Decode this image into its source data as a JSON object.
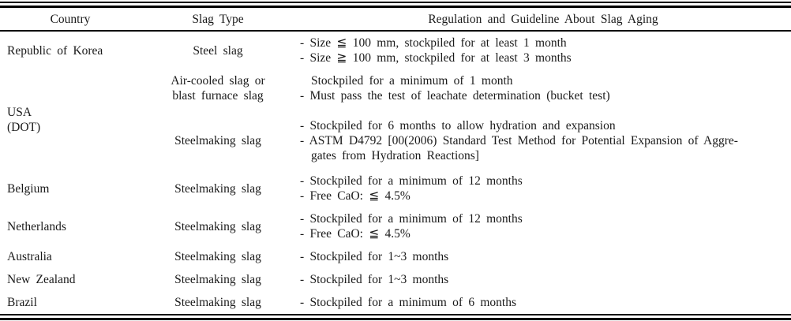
{
  "table": {
    "columns": [
      "Country",
      "Slag Type",
      "Regulation and Guideline About Slag Aging"
    ],
    "rows": [
      {
        "country_lines": [
          "Republic of Korea"
        ],
        "groups": [
          {
            "slag_type_lines": [
              "Steel slag"
            ],
            "regulation_lines": [
              "- Size ≦ 100 mm, stockpiled for at least 1 month",
              "- Size ≧ 100 mm, stockpiled for at least 3 months"
            ]
          }
        ]
      },
      {
        "country_lines": [
          "USA",
          "(DOT)"
        ],
        "groups": [
          {
            "slag_type_lines": [
              "Air-cooled slag or",
              "blast furnace slag"
            ],
            "regulation_lines": [
              "Stockpiled for a minimum of 1 month",
              "- Must pass the test of leachate determination (bucket test)"
            ]
          },
          {
            "slag_type_lines": [
              "Steelmaking slag"
            ],
            "regulation_lines": [
              "- Stockpiled for 6 months to allow hydration and expansion",
              "- ASTM D4792 [00(2006) Standard Test Method for Potential Expansion of Aggre-",
              "gates from Hydration Reactions]"
            ]
          }
        ]
      },
      {
        "country_lines": [
          "Belgium"
        ],
        "groups": [
          {
            "slag_type_lines": [
              "Steelmaking slag"
            ],
            "regulation_lines": [
              "- Stockpiled for a minimum of 12 months",
              "- Free CaO: ≦ 4.5%"
            ]
          }
        ]
      },
      {
        "country_lines": [
          "Netherlands"
        ],
        "groups": [
          {
            "slag_type_lines": [
              "Steelmaking slag"
            ],
            "regulation_lines": [
              "- Stockpiled for a minimum of 12 months",
              "- Free CaO: ≦ 4.5%"
            ]
          }
        ]
      },
      {
        "country_lines": [
          "Australia"
        ],
        "groups": [
          {
            "slag_type_lines": [
              "Steelmaking slag"
            ],
            "regulation_lines": [
              "- Stockpiled for 1~3 months"
            ]
          }
        ]
      },
      {
        "country_lines": [
          "New Zealand"
        ],
        "groups": [
          {
            "slag_type_lines": [
              "Steelmaking slag"
            ],
            "regulation_lines": [
              "- Stockpiled for 1~3 months"
            ]
          }
        ]
      },
      {
        "country_lines": [
          "Brazil"
        ],
        "groups": [
          {
            "slag_type_lines": [
              "Steelmaking slag"
            ],
            "regulation_lines": [
              "- Stockpiled for a minimum of 6 months"
            ]
          }
        ]
      }
    ]
  },
  "colors": {
    "text": "#1a1a1a",
    "rule": "#000000",
    "background": "#ffffff"
  }
}
